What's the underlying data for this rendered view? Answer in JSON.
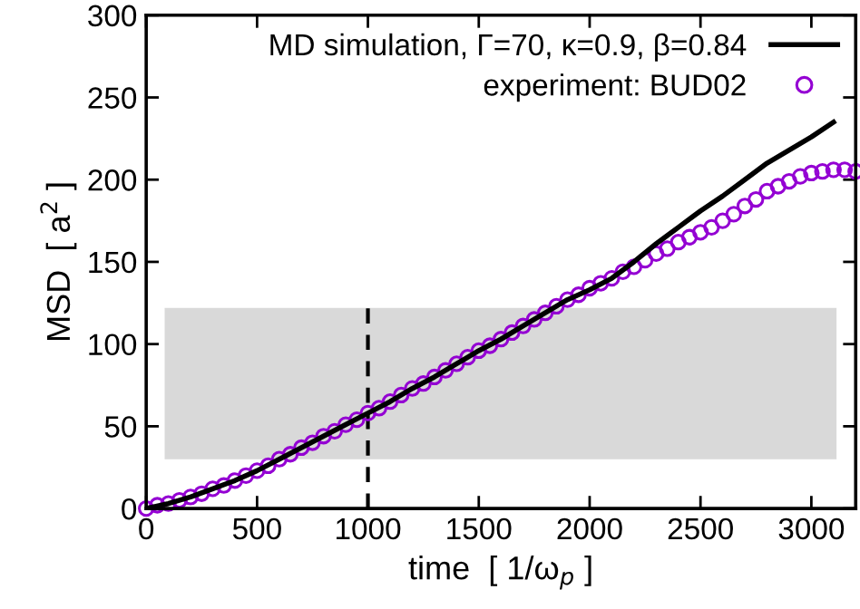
{
  "chart_data": {
    "type": "line",
    "xlabel": "time  [ 1/ω$_{p}$ ]",
    "ylabel": "MSD  [ a$^{2}$ ]",
    "xlim": [
      0,
      3200
    ],
    "xticks": [
      0,
      500,
      1000,
      1500,
      2000,
      2500,
      3000
    ],
    "ylim": [
      0,
      300
    ],
    "yticks": [
      0,
      50,
      100,
      150,
      200,
      250,
      300
    ],
    "grid": false,
    "legend": "top right",
    "bands": [
      {
        "axis": "y",
        "from": 30,
        "to": 122,
        "color": "#d9d9d9"
      }
    ],
    "ref_lines": [
      {
        "axis": "x",
        "value": 1000,
        "color": "#000000",
        "line_style": "dashed"
      }
    ],
    "series": [
      {
        "name": "MD simulation, Γ=70, κ=0.9, β=0.84",
        "color": "#000000",
        "marker": "none",
        "line_style": "solid",
        "x": [
          0,
          100,
          200,
          300,
          400,
          500,
          600,
          700,
          800,
          900,
          1000,
          1100,
          1200,
          1300,
          1400,
          1500,
          1600,
          1700,
          1800,
          1900,
          2000,
          2100,
          2200,
          2300,
          2400,
          2500,
          2600,
          2700,
          2800,
          2900,
          3000,
          3100
        ],
        "values": [
          0,
          3,
          7,
          12,
          17,
          23,
          30,
          37,
          44,
          51,
          58,
          65,
          73,
          80,
          88,
          96,
          103,
          111,
          119,
          127,
          133,
          140,
          150,
          161,
          171,
          181,
          190,
          200,
          210,
          218,
          226,
          235
        ]
      },
      {
        "name": "experiment: BUD02",
        "type": "scatter",
        "color": "#9400d3",
        "marker": "circle",
        "x": [
          0,
          50,
          100,
          150,
          200,
          250,
          300,
          350,
          400,
          450,
          500,
          550,
          600,
          650,
          700,
          750,
          800,
          850,
          900,
          950,
          1000,
          1050,
          1100,
          1150,
          1200,
          1250,
          1300,
          1350,
          1400,
          1450,
          1500,
          1550,
          1600,
          1650,
          1700,
          1750,
          1800,
          1850,
          1900,
          1950,
          2000,
          2050,
          2100,
          2150,
          2200,
          2250,
          2300,
          2350,
          2400,
          2450,
          2500,
          2550,
          2600,
          2650,
          2700,
          2750,
          2800,
          2850,
          2900,
          2950,
          3000,
          3050,
          3100,
          3150,
          3200
        ],
        "values": [
          0,
          2,
          3,
          5,
          7,
          9,
          12,
          14,
          17,
          20,
          23,
          26,
          30,
          33,
          37,
          40,
          44,
          47,
          51,
          54,
          58,
          61,
          65,
          69,
          73,
          76,
          80,
          84,
          88,
          92,
          96,
          99,
          103,
          107,
          111,
          115,
          119,
          123,
          127,
          130,
          134,
          137,
          140,
          144,
          147,
          151,
          155,
          158,
          162,
          165,
          168,
          171,
          175,
          179,
          184,
          188,
          193,
          196,
          199,
          202,
          204,
          205,
          206,
          206,
          205
        ]
      }
    ]
  }
}
